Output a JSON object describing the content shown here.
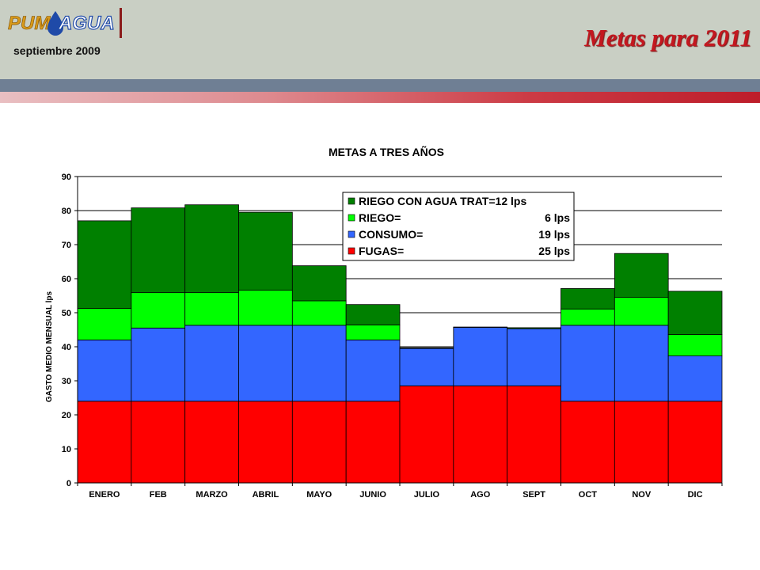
{
  "header": {
    "logo_text": "PUMAGUA",
    "date": "septiembre 2009",
    "title": "Metas para 2011"
  },
  "colors": {
    "fugas": "#ff0000",
    "consumo": "#3366ff",
    "riego": "#00ff00",
    "riego_trat": "#008000",
    "title_red": "#c4171f"
  },
  "chart_data": {
    "type": "bar",
    "stacked": true,
    "title": "METAS A TRES AÑOS",
    "xlabel": "",
    "ylabel": "GASTO MEDIO MENSUAL lps",
    "ylim": [
      0,
      90
    ],
    "yticks": [
      0,
      10,
      20,
      30,
      40,
      50,
      60,
      70,
      80,
      90
    ],
    "grid": true,
    "legend_position": "top-right",
    "categories": [
      "ENERO",
      "FEB",
      "MARZO",
      "ABRIL",
      "MAYO",
      "JUNIO",
      "JULIO",
      "AGO",
      "SEPT",
      "OCT",
      "NOV",
      "DIC"
    ],
    "series": [
      {
        "key": "fugas",
        "name": "FUGAS=",
        "legend_value": "25 lps",
        "color": "#ff0000",
        "values": [
          24,
          24,
          24,
          24,
          24,
          24,
          28.5,
          28.5,
          28.5,
          24,
          24,
          24
        ]
      },
      {
        "key": "consumo",
        "name": "CONSUMO=",
        "legend_value": "19 lps",
        "color": "#3366ff",
        "values": [
          18,
          21.5,
          22.3,
          22.3,
          22.3,
          18,
          11,
          17.2,
          16.8,
          22.3,
          22.3,
          13.3
        ]
      },
      {
        "key": "riego",
        "name": "RIEGO=",
        "legend_value": "6 lps",
        "color": "#00ff00",
        "values": [
          9.3,
          10.4,
          9.6,
          10.3,
          7.2,
          4.4,
          0,
          0,
          0,
          4.8,
          8.2,
          6.3
        ]
      },
      {
        "key": "riego_trat",
        "name": "RIEGO CON AGUA TRAT=12 lps",
        "legend_value": "",
        "color": "#008000",
        "values": [
          25.7,
          24.9,
          25.8,
          22.9,
          10.3,
          6,
          0.2,
          0.1,
          0.3,
          6,
          12.9,
          12.7
        ]
      }
    ]
  }
}
